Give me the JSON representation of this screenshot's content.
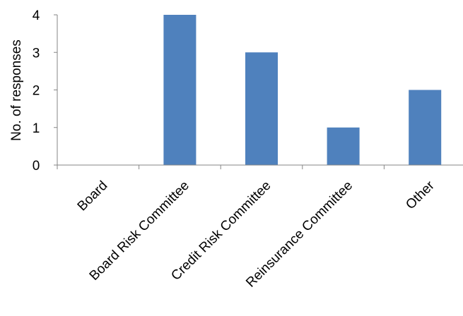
{
  "chart_data": {
    "type": "bar",
    "categories": [
      "Board",
      "Board Risk Committee",
      "Credit Risk Committee",
      "Reinsurance Committee",
      "Other"
    ],
    "values": [
      0,
      4,
      3,
      1,
      2
    ],
    "title": "",
    "xlabel": "",
    "ylabel": "No. of responses",
    "ylim": [
      0,
      4
    ],
    "yticks": [
      0,
      1,
      2,
      3,
      4
    ],
    "grid": false,
    "legend": "none",
    "bar_color": "#4f81bd",
    "axis_color": "#868686"
  }
}
